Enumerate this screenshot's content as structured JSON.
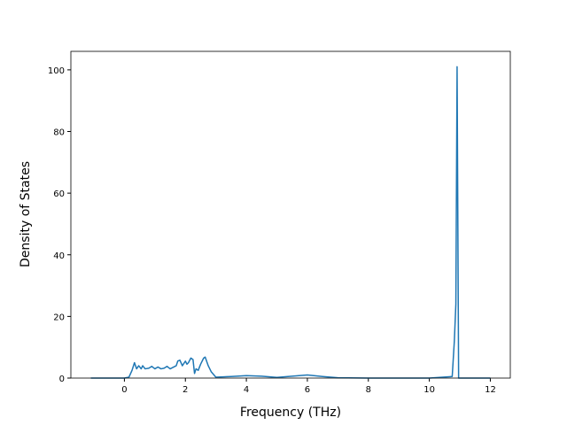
{
  "chart_data": {
    "type": "line",
    "xlabel": "Frequency (THz)",
    "ylabel": "Density of States",
    "x": [
      -1.1,
      0,
      0.15,
      0.25,
      0.33,
      0.4,
      0.47,
      0.55,
      0.6,
      0.68,
      0.8,
      0.9,
      1.0,
      1.1,
      1.2,
      1.3,
      1.4,
      1.5,
      1.6,
      1.7,
      1.75,
      1.82,
      1.9,
      2.0,
      2.05,
      2.1,
      2.18,
      2.25,
      2.3,
      2.35,
      2.42,
      2.5,
      2.6,
      2.65,
      2.75,
      2.85,
      3.0,
      3.5,
      4.0,
      4.5,
      5.0,
      5.5,
      6.0,
      6.5,
      7.0,
      8.0,
      10.0,
      10.75,
      10.82,
      10.87,
      10.91,
      10.96,
      12.0
    ],
    "series": [
      {
        "color": "#1f77b4",
        "values": [
          0,
          0,
          0.3,
          2.5,
          5,
          3,
          4,
          3,
          4,
          3,
          3.2,
          3.8,
          3,
          3.6,
          3,
          3.2,
          3.8,
          3,
          3.5,
          4,
          5.5,
          5.8,
          4,
          5.5,
          4.5,
          5,
          6.5,
          6,
          1.5,
          3,
          2.5,
          4.5,
          6.5,
          6.8,
          4,
          2,
          0.3,
          0.5,
          0.8,
          0.6,
          0.2,
          0.6,
          1,
          0.5,
          0.1,
          0,
          0,
          0.5,
          12,
          24,
          101,
          0,
          0
        ]
      }
    ],
    "xlim": [
      -1.755,
      12.655
    ],
    "ylim": [
      0,
      106
    ],
    "xticks": [
      0,
      2,
      4,
      6,
      8,
      10,
      12
    ],
    "yticks": [
      0,
      20,
      40,
      60,
      80,
      100
    ]
  }
}
